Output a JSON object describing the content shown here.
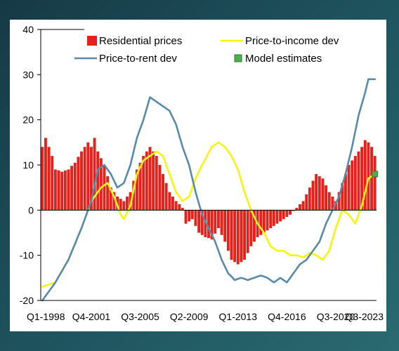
{
  "chart_data": {
    "type": "bar+line",
    "title": "",
    "xlabel": "",
    "ylabel": "",
    "ylim": [
      -20,
      40
    ],
    "yticks": [
      -20,
      -10,
      0,
      10,
      20,
      30,
      40
    ],
    "x_tick_labels": [
      "Q1-1998",
      "Q4-2001",
      "Q3-2005",
      "Q2-2009",
      "Q1-2013",
      "Q4-2016",
      "Q3-2020",
      "Q3-2023"
    ],
    "x_start": "Q1-1998",
    "x_end": "Q3-2023",
    "legend": {
      "placement": "top",
      "items": [
        {
          "key": "residential",
          "label": "Residential prices"
        },
        {
          "key": "income",
          "label": "Price-to-income dev"
        },
        {
          "key": "rent",
          "label": "Price-to-rent dev"
        },
        {
          "key": "model",
          "label": "Model estimates"
        }
      ]
    },
    "colors": {
      "residential": "#e8201a",
      "income": "#f5f514",
      "rent": "#5a8aa8",
      "model": "#4cae4c"
    },
    "series": [
      {
        "key": "residential",
        "name": "Residential prices",
        "type": "bar",
        "keyframes": [
          [
            "Q1-1998",
            14
          ],
          [
            "Q2-1998",
            16
          ],
          [
            "Q3-1998",
            14
          ],
          [
            "Q4-1998",
            12
          ],
          [
            "Q1-1999",
            9
          ],
          [
            "Q3-1999",
            8.5
          ],
          [
            "Q1-2000",
            9
          ],
          [
            "Q3-2000",
            10.5
          ],
          [
            "Q1-2001",
            13
          ],
          [
            "Q3-2001",
            15
          ],
          [
            "Q4-2001",
            14
          ],
          [
            "Q1-2002",
            16
          ],
          [
            "Q2-2002",
            13
          ],
          [
            "Q4-2002",
            10
          ],
          [
            "Q2-2003",
            5
          ],
          [
            "Q4-2003",
            3
          ],
          [
            "Q2-2004",
            2
          ],
          [
            "Q4-2004",
            4
          ],
          [
            "Q2-2005",
            9
          ],
          [
            "Q4-2005",
            12
          ],
          [
            "Q2-2006",
            14
          ],
          [
            "Q4-2006",
            12
          ],
          [
            "Q2-2007",
            8
          ],
          [
            "Q4-2007",
            4
          ],
          [
            "Q2-2008",
            2
          ],
          [
            "Q4-2008",
            0.5
          ],
          [
            "Q1-2009",
            -3
          ],
          [
            "Q3-2009",
            -2
          ],
          [
            "Q1-2010",
            -5
          ],
          [
            "Q3-2010",
            -6
          ],
          [
            "Q1-2011",
            -6.5
          ],
          [
            "Q3-2011",
            -4
          ],
          [
            "Q1-2012",
            -7
          ],
          [
            "Q3-2012",
            -11
          ],
          [
            "Q1-2013",
            -12
          ],
          [
            "Q3-2013",
            -11
          ],
          [
            "Q1-2014",
            -8
          ],
          [
            "Q3-2014",
            -6
          ],
          [
            "Q1-2015",
            -5
          ],
          [
            "Q3-2015",
            -4
          ],
          [
            "Q1-2016",
            -3
          ],
          [
            "Q3-2016",
            -2
          ],
          [
            "Q1-2017",
            -1
          ],
          [
            "Q3-2017",
            0.5
          ],
          [
            "Q1-2018",
            2
          ],
          [
            "Q3-2018",
            5
          ],
          [
            "Q1-2019",
            8
          ],
          [
            "Q3-2019",
            7
          ],
          [
            "Q1-2020",
            4
          ],
          [
            "Q3-2020",
            2
          ],
          [
            "Q1-2021",
            6
          ],
          [
            "Q3-2021",
            10
          ],
          [
            "Q1-2022",
            12
          ],
          [
            "Q3-2022",
            14
          ],
          [
            "Q4-2022",
            15.5
          ],
          [
            "Q1-2023",
            15
          ],
          [
            "Q2-2023",
            14
          ],
          [
            "Q3-2023",
            12
          ]
        ]
      },
      {
        "key": "income",
        "name": "Price-to-income dev",
        "type": "line",
        "keyframes": [
          [
            "Q1-1998",
            -17
          ],
          [
            "Q1-1999",
            -16
          ],
          [
            "Q1-2000",
            -11
          ],
          [
            "Q1-2001",
            -4
          ],
          [
            "Q4-2001",
            2
          ],
          [
            "Q3-2002",
            5
          ],
          [
            "Q1-2003",
            6
          ],
          [
            "Q3-2003",
            3
          ],
          [
            "Q1-2004",
            -1
          ],
          [
            "Q2-2004",
            -2
          ],
          [
            "Q4-2004",
            1
          ],
          [
            "Q2-2005",
            8
          ],
          [
            "Q4-2005",
            11
          ],
          [
            "Q2-2006",
            12
          ],
          [
            "Q4-2006",
            13
          ],
          [
            "Q2-2007",
            12
          ],
          [
            "Q4-2007",
            8
          ],
          [
            "Q2-2008",
            4
          ],
          [
            "Q4-2008",
            2
          ],
          [
            "Q2-2009",
            3
          ],
          [
            "Q4-2009",
            7
          ],
          [
            "Q2-2010",
            10
          ],
          [
            "Q1-2011",
            14
          ],
          [
            "Q3-2011",
            15
          ],
          [
            "Q1-2012",
            14
          ],
          [
            "Q3-2012",
            12
          ],
          [
            "Q1-2013",
            9
          ],
          [
            "Q3-2013",
            4
          ],
          [
            "Q1-2014",
            0
          ],
          [
            "Q3-2014",
            -3
          ],
          [
            "Q1-2015",
            -5
          ],
          [
            "Q3-2015",
            -8
          ],
          [
            "Q1-2016",
            -9
          ],
          [
            "Q3-2016",
            -9
          ],
          [
            "Q1-2017",
            -10
          ],
          [
            "Q3-2017",
            -10
          ],
          [
            "Q1-2018",
            -10.5
          ],
          [
            "Q3-2018",
            -9.5
          ],
          [
            "Q1-2019",
            -10
          ],
          [
            "Q3-2019",
            -11
          ],
          [
            "Q1-2020",
            -9
          ],
          [
            "Q3-2020",
            -4
          ],
          [
            "Q1-2021",
            0
          ],
          [
            "Q3-2021",
            -1
          ],
          [
            "Q1-2022",
            -3
          ],
          [
            "Q3-2022",
            1
          ],
          [
            "Q1-2023",
            7
          ],
          [
            "Q3-2023",
            8
          ]
        ]
      },
      {
        "key": "rent",
        "name": "Price-to-rent dev",
        "type": "line",
        "keyframes": [
          [
            "Q1-1998",
            -20
          ],
          [
            "Q1-1999",
            -16
          ],
          [
            "Q1-2000",
            -11
          ],
          [
            "Q1-2001",
            -4
          ],
          [
            "Q4-2001",
            2
          ],
          [
            "Q2-2002",
            9
          ],
          [
            "Q4-2002",
            10
          ],
          [
            "Q2-2003",
            8
          ],
          [
            "Q4-2003",
            5
          ],
          [
            "Q2-2004",
            6
          ],
          [
            "Q4-2004",
            10
          ],
          [
            "Q2-2005",
            16
          ],
          [
            "Q4-2005",
            20
          ],
          [
            "Q2-2006",
            25
          ],
          [
            "Q4-2006",
            24
          ],
          [
            "Q2-2007",
            23
          ],
          [
            "Q4-2007",
            22
          ],
          [
            "Q2-2008",
            19
          ],
          [
            "Q4-2008",
            14
          ],
          [
            "Q2-2009",
            10
          ],
          [
            "Q4-2009",
            4
          ],
          [
            "Q2-2010",
            -1
          ],
          [
            "Q4-2010",
            -4
          ],
          [
            "Q2-2011",
            -7
          ],
          [
            "Q4-2011",
            -11
          ],
          [
            "Q2-2012",
            -14
          ],
          [
            "Q4-2012",
            -15.5
          ],
          [
            "Q2-2013",
            -15
          ],
          [
            "Q4-2013",
            -15.5
          ],
          [
            "Q2-2014",
            -15
          ],
          [
            "Q4-2014",
            -14.5
          ],
          [
            "Q2-2015",
            -15
          ],
          [
            "Q4-2015",
            -16
          ],
          [
            "Q2-2016",
            -15
          ],
          [
            "Q4-2016",
            -16
          ],
          [
            "Q2-2017",
            -14
          ],
          [
            "Q4-2017",
            -12
          ],
          [
            "Q2-2018",
            -11
          ],
          [
            "Q4-2018",
            -9
          ],
          [
            "Q2-2019",
            -7
          ],
          [
            "Q4-2019",
            -3
          ],
          [
            "Q2-2020",
            0
          ],
          [
            "Q4-2020",
            3
          ],
          [
            "Q2-2021",
            8
          ],
          [
            "Q4-2021",
            14
          ],
          [
            "Q2-2022",
            21
          ],
          [
            "Q4-2022",
            26
          ],
          [
            "Q1-2023",
            29
          ],
          [
            "Q3-2023",
            29
          ]
        ]
      },
      {
        "key": "model",
        "name": "Model estimates",
        "type": "point",
        "points": [
          [
            "Q3-2023",
            8
          ]
        ]
      }
    ]
  }
}
